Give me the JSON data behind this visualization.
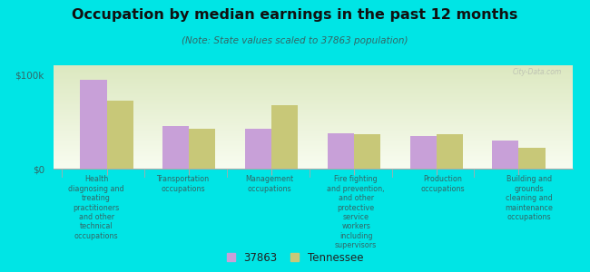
{
  "title": "Occupation by median earnings in the past 12 months",
  "subtitle": "(Note: State values scaled to 37863 population)",
  "background_color": "#00e5e5",
  "plot_bg_color_top": "#dce8c0",
  "plot_bg_color_bottom": "#f0f5e0",
  "categories": [
    "Health\ndiagnosing and\ntreating\npractitioners\nand other\ntechnical\noccupations",
    "Transportation\noccupations",
    "Management\noccupations",
    "Fire fighting\nand prevention,\nand other\nprotective\nservice\nworkers\nincluding\nsupervisors",
    "Production\noccupations",
    "Building and\ngrounds\ncleaning and\nmaintenance\noccupations"
  ],
  "values_37863": [
    95000,
    45000,
    42000,
    38000,
    35000,
    30000
  ],
  "values_tennessee": [
    72000,
    42000,
    68000,
    37000,
    37000,
    22000
  ],
  "color_37863": "#c8a0d8",
  "color_tennessee": "#c8c878",
  "legend_label_1": "37863",
  "legend_label_2": "Tennessee",
  "ylim": [
    0,
    110000
  ],
  "yticks": [
    0,
    100000
  ],
  "ytick_labels": [
    "$0",
    "$100k"
  ],
  "watermark": "City-Data.com"
}
